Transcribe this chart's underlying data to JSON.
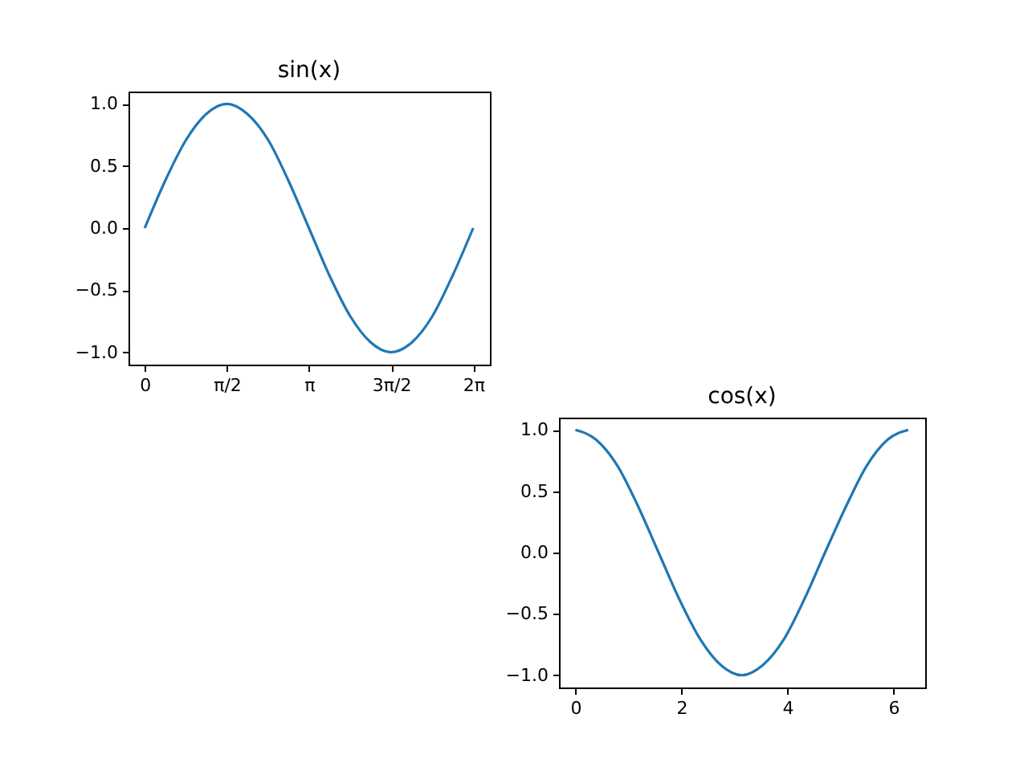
{
  "chart_data": [
    {
      "type": "line",
      "title": "sin(x)",
      "x": [
        0,
        0.39,
        0.79,
        1.18,
        1.57,
        1.96,
        2.36,
        2.75,
        3.14,
        3.53,
        3.93,
        4.32,
        4.71,
        5.11,
        5.5,
        5.89,
        6.28
      ],
      "series": [
        {
          "color": "#1f77b4",
          "values": [
            0,
            0.38,
            0.71,
            0.92,
            1,
            0.92,
            0.71,
            0.38,
            0,
            -0.38,
            -0.71,
            -0.92,
            -1,
            -0.92,
            -0.71,
            -0.38,
            0
          ]
        }
      ],
      "xlim": [
        -0.31,
        6.6
      ],
      "ylim": [
        -1.1,
        1.1
      ],
      "xticks": [
        0,
        {
          "value": 1.5708,
          "label": "π/2"
        },
        {
          "value": 3.1416,
          "label": "π"
        },
        {
          "value": 4.7124,
          "label": "3π/2"
        },
        {
          "value": 6.2832,
          "label": "2π"
        }
      ],
      "yticks": [
        {
          "value": -1,
          "label": "−1.0"
        },
        {
          "value": -0.5,
          "label": "−0.5"
        },
        {
          "value": 0,
          "label": "0.0"
        },
        {
          "value": 0.5,
          "label": "0.5"
        },
        {
          "value": 1,
          "label": "1.0"
        }
      ],
      "grid": false
    },
    {
      "type": "line",
      "title": "cos(x)",
      "x": [
        0,
        0.39,
        0.79,
        1.18,
        1.57,
        1.96,
        2.36,
        2.75,
        3.14,
        3.53,
        3.93,
        4.32,
        4.71,
        5.11,
        5.5,
        5.89,
        6.28
      ],
      "series": [
        {
          "color": "#1f77b4",
          "values": [
            1,
            0.92,
            0.71,
            0.38,
            0,
            -0.38,
            -0.71,
            -0.92,
            -1,
            -0.92,
            -0.71,
            -0.38,
            0,
            0.38,
            0.71,
            0.92,
            1
          ]
        }
      ],
      "xlim": [
        -0.31,
        6.6
      ],
      "ylim": [
        -1.1,
        1.1
      ],
      "xticks": [
        0,
        2,
        4,
        6
      ],
      "yticks": [
        {
          "value": -1,
          "label": "−1.0"
        },
        {
          "value": -0.5,
          "label": "−0.5"
        },
        {
          "value": 0,
          "label": "0.0"
        },
        {
          "value": 0.5,
          "label": "0.5"
        },
        {
          "value": 1,
          "label": "1.0"
        }
      ],
      "grid": false
    }
  ]
}
